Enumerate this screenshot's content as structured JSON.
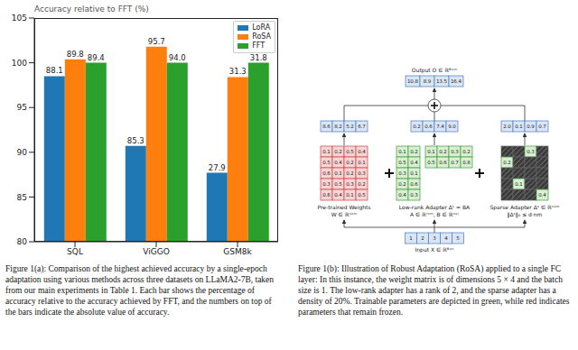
{
  "chart_data": {
    "type": "bar",
    "y_label": "Accuracy relative to FFT (%)",
    "categories": [
      "SQL",
      "ViGGO",
      "GSM8k"
    ],
    "series": [
      {
        "name": "LoRA",
        "color": "#1f77b4",
        "values": [
          98.5,
          90.7,
          87.7
        ],
        "absolute_accuracy": [
          88.1,
          85.3,
          27.9
        ]
      },
      {
        "name": "RoSA",
        "color": "#ff7f0e",
        "values": [
          100.4,
          101.8,
          98.4
        ],
        "absolute_accuracy": [
          89.8,
          95.7,
          31.3
        ]
      },
      {
        "name": "FFT",
        "color": "#2ca02c",
        "values": [
          100,
          100,
          100
        ],
        "absolute_accuracy": [
          89.4,
          94.0,
          31.8
        ]
      }
    ],
    "ylim": [
      80,
      105
    ],
    "yticks": [
      80,
      85,
      90,
      95,
      100,
      105
    ],
    "grid": false,
    "legend": "upper right"
  },
  "diagram": {
    "output": {
      "label": "Output O ∈ ℝᴮˣᵐ",
      "values": [
        "10.8",
        "8.9",
        "13.5",
        "16.4"
      ]
    },
    "branches": [
      {
        "label": [
          "Pre-trained Weights",
          "W ∈ ℝⁿˣᵐ"
        ],
        "result": [
          "8.6",
          "8.2",
          "5.2",
          "6.7"
        ],
        "matrices": [
          {
            "trainable": false,
            "cells": [
              [
                "0.1",
                "0.2",
                "0.5",
                "0.4"
              ],
              [
                "0.5",
                "0.4",
                "0.2",
                "0.1"
              ],
              [
                "0.6",
                "0.1",
                "0.2",
                "0.3"
              ],
              [
                "0.3",
                "0.5",
                "0.3",
                "0.2"
              ],
              [
                "0.6",
                "0.4",
                "0.1",
                "0.5"
              ]
            ]
          }
        ]
      },
      {
        "label": [
          "Low-rank Adapter Δᴸ = BA",
          "A ∈ ℝʳˣᵐ, B ∈ ℝⁿˣʳ"
        ],
        "result": [
          "0.2",
          "0.6",
          "7.4",
          "9.0"
        ],
        "matrices": [
          {
            "trainable": true,
            "cells": [
              [
                "0.1",
                "0.2"
              ],
              [
                "0.5",
                "0.4"
              ],
              [
                "0.3",
                "0.1"
              ],
              [
                "0.2",
                "0.6"
              ],
              [
                "0.4",
                "0.3"
              ]
            ]
          },
          {
            "trainable": true,
            "cells": [
              [
                "0.1",
                "0.2",
                "0.3",
                "0.2"
              ],
              [
                "0.5",
                "0.6",
                "0.7",
                "0.8"
              ]
            ]
          }
        ]
      },
      {
        "label": [
          "Sparse Adapter Δˢ ∈ ℝⁿˣᵐ",
          "‖Δˢ‖₀ ≤ d·nm"
        ],
        "result": [
          "2.0",
          "0.1",
          "0.9",
          "0.7"
        ],
        "matrices": [
          {
            "trainable": true,
            "cells": [
              [
                null,
                null,
                "0.3",
                null
              ],
              [
                "0.2",
                null,
                null,
                null
              ],
              [
                null,
                null,
                null,
                null
              ],
              [
                null,
                "0.1",
                null,
                null
              ],
              [
                null,
                null,
                null,
                "0.4"
              ]
            ]
          }
        ]
      }
    ],
    "input": {
      "label": "Input X ∈ ℝᴮˣⁿ",
      "values": [
        "1",
        "2",
        "3",
        "4",
        "5"
      ]
    }
  },
  "captions": [
    "Figure 1(a): Comparison of the highest achieved accuracy by a single-epoch adaptation using various methods across three datasets on LLaMA2-7B, taken from our main experiments in Table 1. Each bar shows the percentage of accuracy relative to the accuracy achieved by FFT, and the numbers on top of the bars indicate the absolute value of accuracy.",
    "Figure 1(b): Illustration of Robust Adaptation (RoSA) applied to a single FC layer: In this instance, the weight matrix is of dimensions 5 × 4 and the batch size is 1. The low-rank adapter has a rank of 2, and the sparse adapter has a density of 20%. Trainable parameters are depicted in green, while red indicates parameters that remain frozen."
  ]
}
